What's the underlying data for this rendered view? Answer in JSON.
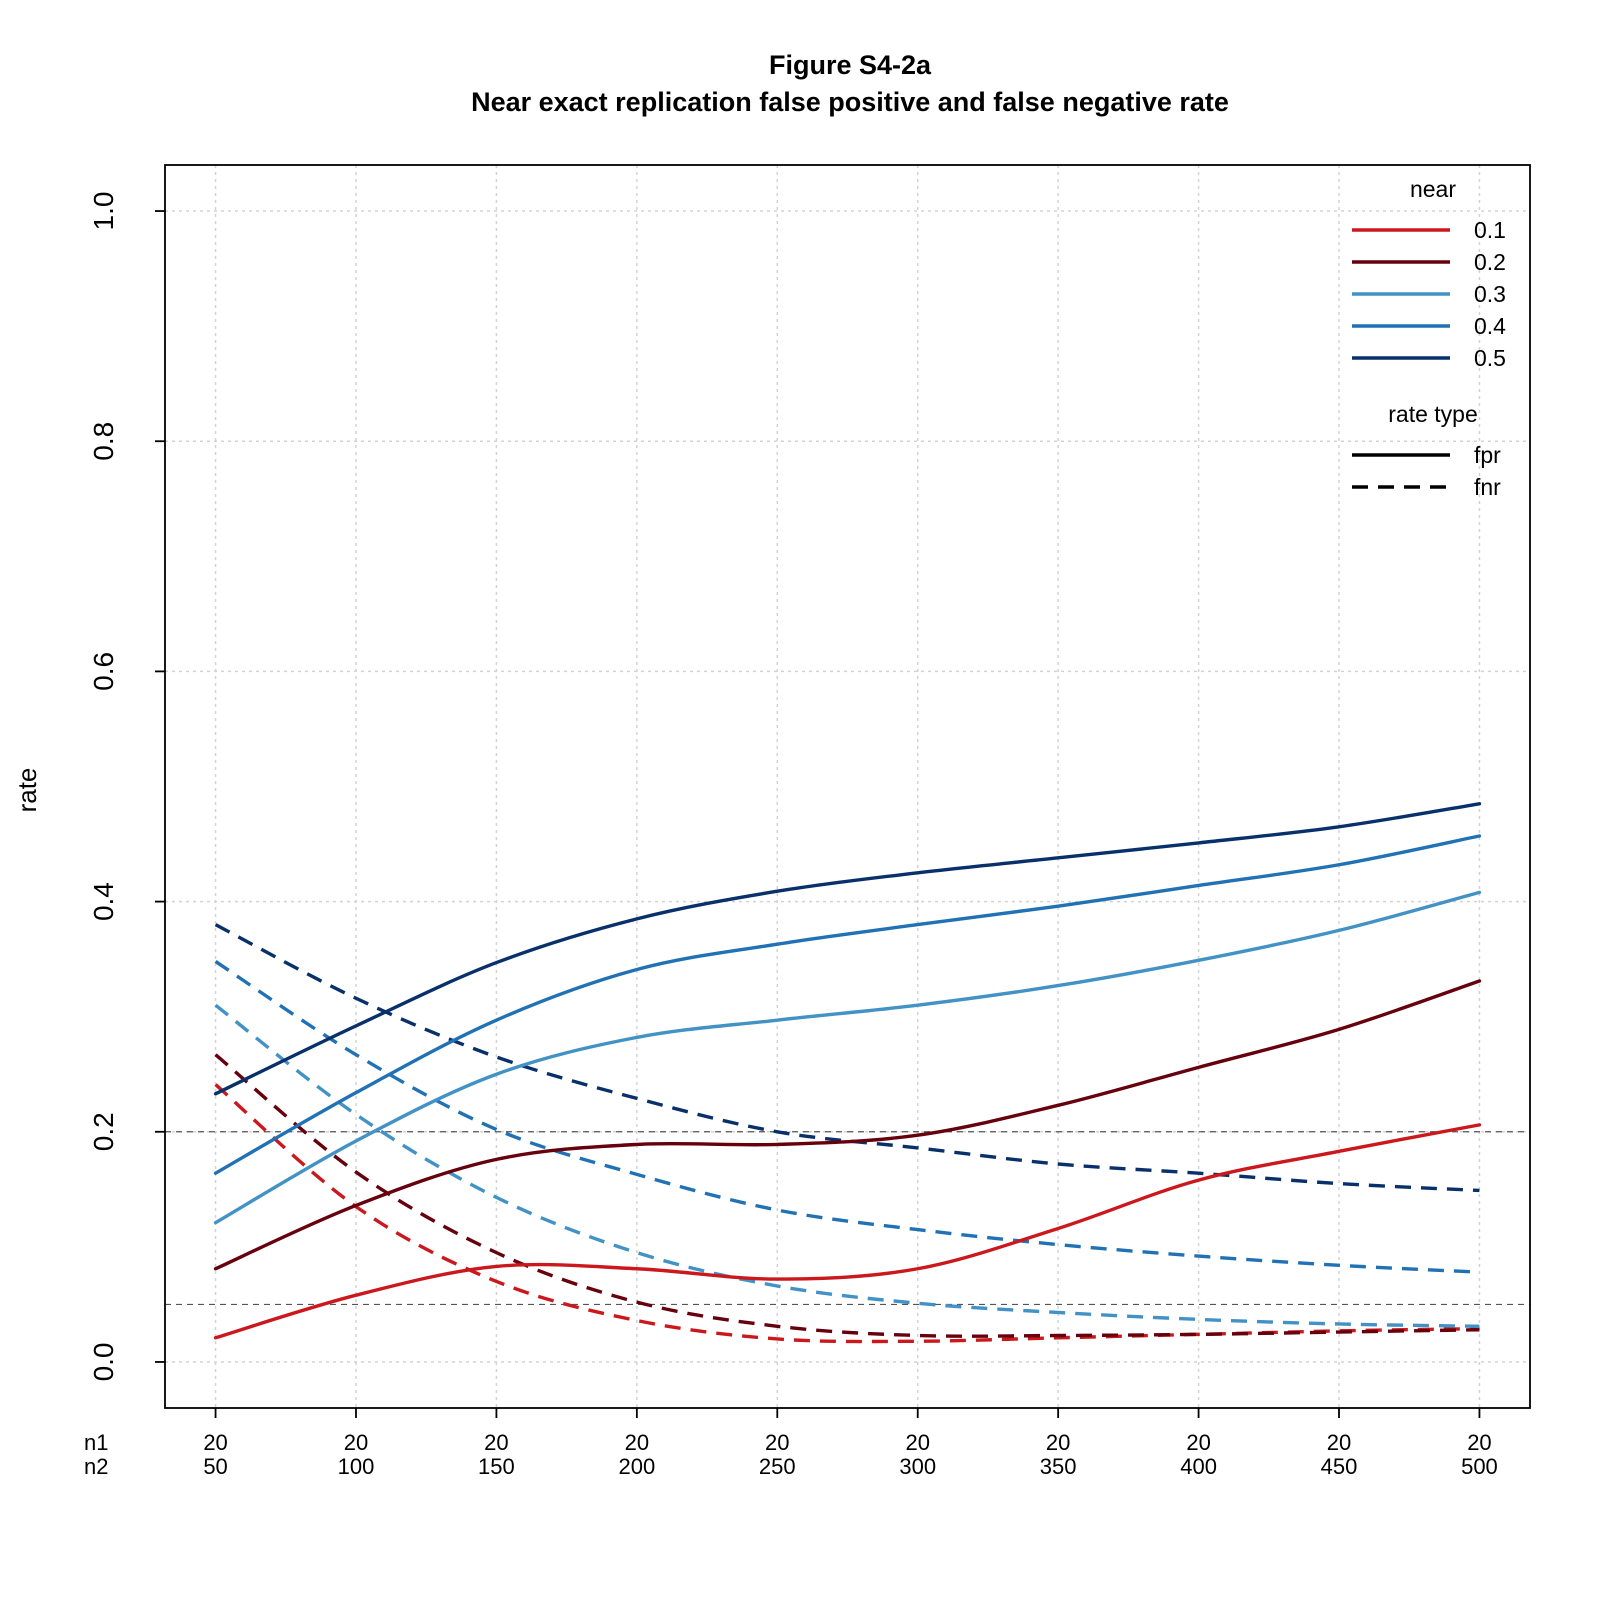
{
  "chart_data": {
    "type": "line",
    "title": "Figure S4-2a",
    "subtitle": "Near exact replication false positive and false negative rate",
    "ylabel": "rate",
    "xlabel": "",
    "x_row_labels": [
      "n1",
      "n2"
    ],
    "n1": [
      20,
      20,
      20,
      20,
      20,
      20,
      20,
      20,
      20,
      20
    ],
    "x": [
      50,
      100,
      150,
      200,
      250,
      300,
      350,
      400,
      450,
      500
    ],
    "xlim": [
      32,
      518
    ],
    "ylim": [
      -0.04,
      1.04
    ],
    "yticks": [
      0.0,
      0.2,
      0.4,
      0.6,
      0.8,
      1.0
    ],
    "ytick_labels": [
      "0.0",
      "0.2",
      "0.4",
      "0.6",
      "0.8",
      "1.0"
    ],
    "reference_lines": [
      0.05,
      0.2
    ],
    "grid": true,
    "legend": {
      "placement": "top-right",
      "color_title": "near",
      "linetype_title": "rate type",
      "linetypes": [
        {
          "label": "fpr",
          "style": "solid"
        },
        {
          "label": "fnr",
          "style": "dashed"
        }
      ]
    },
    "series": [
      {
        "name": "0.1",
        "color": "#CB181D",
        "fpr": [
          0.021,
          0.058,
          0.083,
          0.081,
          0.072,
          0.081,
          0.116,
          0.158,
          0.183,
          0.206
        ],
        "fnr": [
          0.241,
          0.135,
          0.07,
          0.036,
          0.02,
          0.018,
          0.021,
          0.024,
          0.027,
          0.029
        ]
      },
      {
        "name": "0.2",
        "color": "#67000D",
        "fpr": [
          0.081,
          0.136,
          0.176,
          0.189,
          0.189,
          0.197,
          0.223,
          0.256,
          0.289,
          0.331
        ],
        "fnr": [
          0.267,
          0.165,
          0.095,
          0.052,
          0.031,
          0.023,
          0.023,
          0.024,
          0.026,
          0.028
        ]
      },
      {
        "name": "0.3",
        "color": "#4292C6",
        "fpr": [
          0.121,
          0.192,
          0.25,
          0.282,
          0.297,
          0.31,
          0.327,
          0.349,
          0.375,
          0.408
        ],
        "fnr": [
          0.31,
          0.215,
          0.143,
          0.095,
          0.066,
          0.051,
          0.043,
          0.037,
          0.033,
          0.031
        ]
      },
      {
        "name": "0.4",
        "color": "#2171B5",
        "fpr": [
          0.164,
          0.234,
          0.297,
          0.341,
          0.363,
          0.38,
          0.396,
          0.414,
          0.432,
          0.457
        ],
        "fnr": [
          0.348,
          0.267,
          0.202,
          0.163,
          0.132,
          0.115,
          0.102,
          0.092,
          0.084,
          0.078
        ]
      },
      {
        "name": "0.5",
        "color": "#08306B",
        "fpr": [
          0.233,
          0.292,
          0.347,
          0.385,
          0.409,
          0.425,
          0.438,
          0.451,
          0.465,
          0.485
        ],
        "fnr": [
          0.38,
          0.316,
          0.265,
          0.229,
          0.2,
          0.186,
          0.172,
          0.164,
          0.155,
          0.149
        ]
      }
    ]
  }
}
